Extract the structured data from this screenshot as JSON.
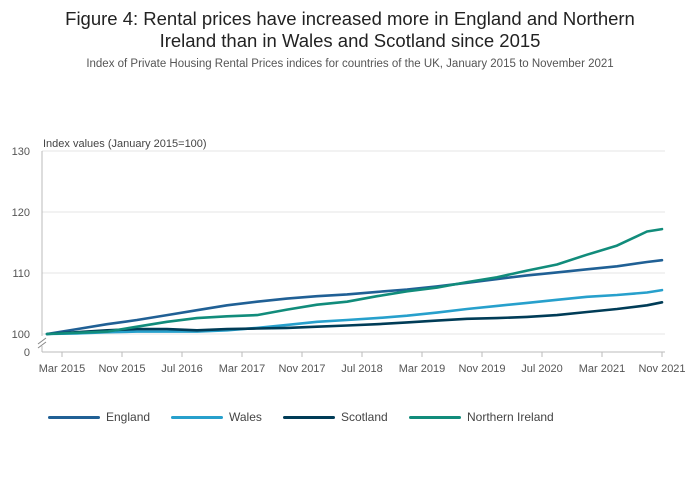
{
  "header": {
    "title_line1": "Figure 4: Rental prices have increased more in England and Northern",
    "title_line2": "Ireland than in Wales and Scotland since 2015",
    "subtitle": "Index of Private Housing Rental Prices indices for countries of the UK, January 2015 to November 2021"
  },
  "chart_data": {
    "type": "line",
    "ylabel": "Index values (January 2015=100)",
    "xlabel": "",
    "ylim": [
      100,
      130
    ],
    "y_ticks": [
      0,
      100,
      110,
      120,
      130
    ],
    "y_axis_break": true,
    "grid": true,
    "legend_position": "bottom",
    "x_tick_labels": [
      "Mar 2015",
      "Nov 2015",
      "Jul 2016",
      "Mar 2017",
      "Nov 2017",
      "Jul 2018",
      "Mar 2019",
      "Nov 2019",
      "Jul 2020",
      "Mar 2021",
      "Nov 2021"
    ],
    "x_tick_months": [
      2,
      10,
      18,
      26,
      34,
      42,
      50,
      58,
      66,
      74,
      82
    ],
    "x_months": [
      0,
      4,
      8,
      12,
      16,
      20,
      24,
      28,
      32,
      36,
      40,
      44,
      48,
      52,
      56,
      60,
      64,
      68,
      72,
      76,
      80,
      82
    ],
    "series": [
      {
        "name": "England",
        "color": "#206095",
        "values": [
          100.0,
          100.8,
          101.6,
          102.3,
          103.1,
          103.9,
          104.7,
          105.3,
          105.8,
          106.2,
          106.5,
          106.9,
          107.3,
          107.8,
          108.4,
          109.0,
          109.6,
          110.1,
          110.6,
          111.1,
          111.8,
          112.1
        ]
      },
      {
        "name": "Wales",
        "color": "#27A0CC",
        "values": [
          100.0,
          100.1,
          100.3,
          100.4,
          100.4,
          100.4,
          100.6,
          101.0,
          101.5,
          102.0,
          102.3,
          102.6,
          103.0,
          103.5,
          104.1,
          104.6,
          105.1,
          105.6,
          106.1,
          106.4,
          106.8,
          107.2
        ]
      },
      {
        "name": "Scotland",
        "color": "#003C57",
        "values": [
          100.0,
          100.3,
          100.6,
          100.8,
          100.8,
          100.6,
          100.8,
          100.9,
          101.0,
          101.2,
          101.4,
          101.6,
          101.9,
          102.2,
          102.5,
          102.6,
          102.8,
          103.1,
          103.6,
          104.1,
          104.7,
          105.2
        ]
      },
      {
        "name": "Northern Ireland",
        "color": "#118C7B",
        "values": [
          100.0,
          100.2,
          100.4,
          101.2,
          102.0,
          102.6,
          102.9,
          103.1,
          104.0,
          104.8,
          105.3,
          106.2,
          107.0,
          107.6,
          108.5,
          109.3,
          110.4,
          111.4,
          113.0,
          114.5,
          116.8,
          117.2
        ]
      }
    ]
  }
}
